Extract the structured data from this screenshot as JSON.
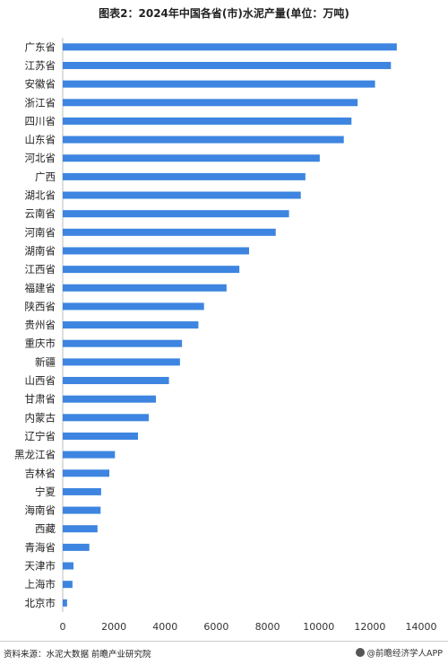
{
  "chart_data": {
    "type": "bar",
    "orientation": "horizontal",
    "title": "图表2：2024年中国各省(市)水泥产量(单位：万吨)",
    "categories": [
      "广东省",
      "江苏省",
      "安徽省",
      "浙江省",
      "四川省",
      "山东省",
      "河北省",
      "广西",
      "湖北省",
      "云南省",
      "河南省",
      "湖南省",
      "江西省",
      "福建省",
      "陕西省",
      "贵州省",
      "重庆市",
      "新疆",
      "山西省",
      "甘肃省",
      "内蒙古",
      "辽宁省",
      "黑龙江省",
      "吉林省",
      "宁夏",
      "海南省",
      "西藏",
      "青海省",
      "天津市",
      "上海市",
      "北京市"
    ],
    "values": [
      13050,
      12820,
      12200,
      11520,
      11280,
      10980,
      10040,
      9480,
      9300,
      8840,
      8320,
      7280,
      6900,
      6400,
      5520,
      5300,
      4660,
      4580,
      4150,
      3640,
      3360,
      2940,
      2040,
      1820,
      1500,
      1480,
      1360,
      1040,
      420,
      380,
      170
    ],
    "xlim": [
      0,
      14000
    ],
    "xticks": [
      0,
      2000,
      4000,
      6000,
      8000,
      10000,
      12000,
      14000
    ],
    "bar_color": "#3d85e0",
    "grid": false
  },
  "footer": {
    "source": "资料来源：水泥大数据 前瞻产业研究院",
    "brand": "@前瞻经济学人APP"
  }
}
